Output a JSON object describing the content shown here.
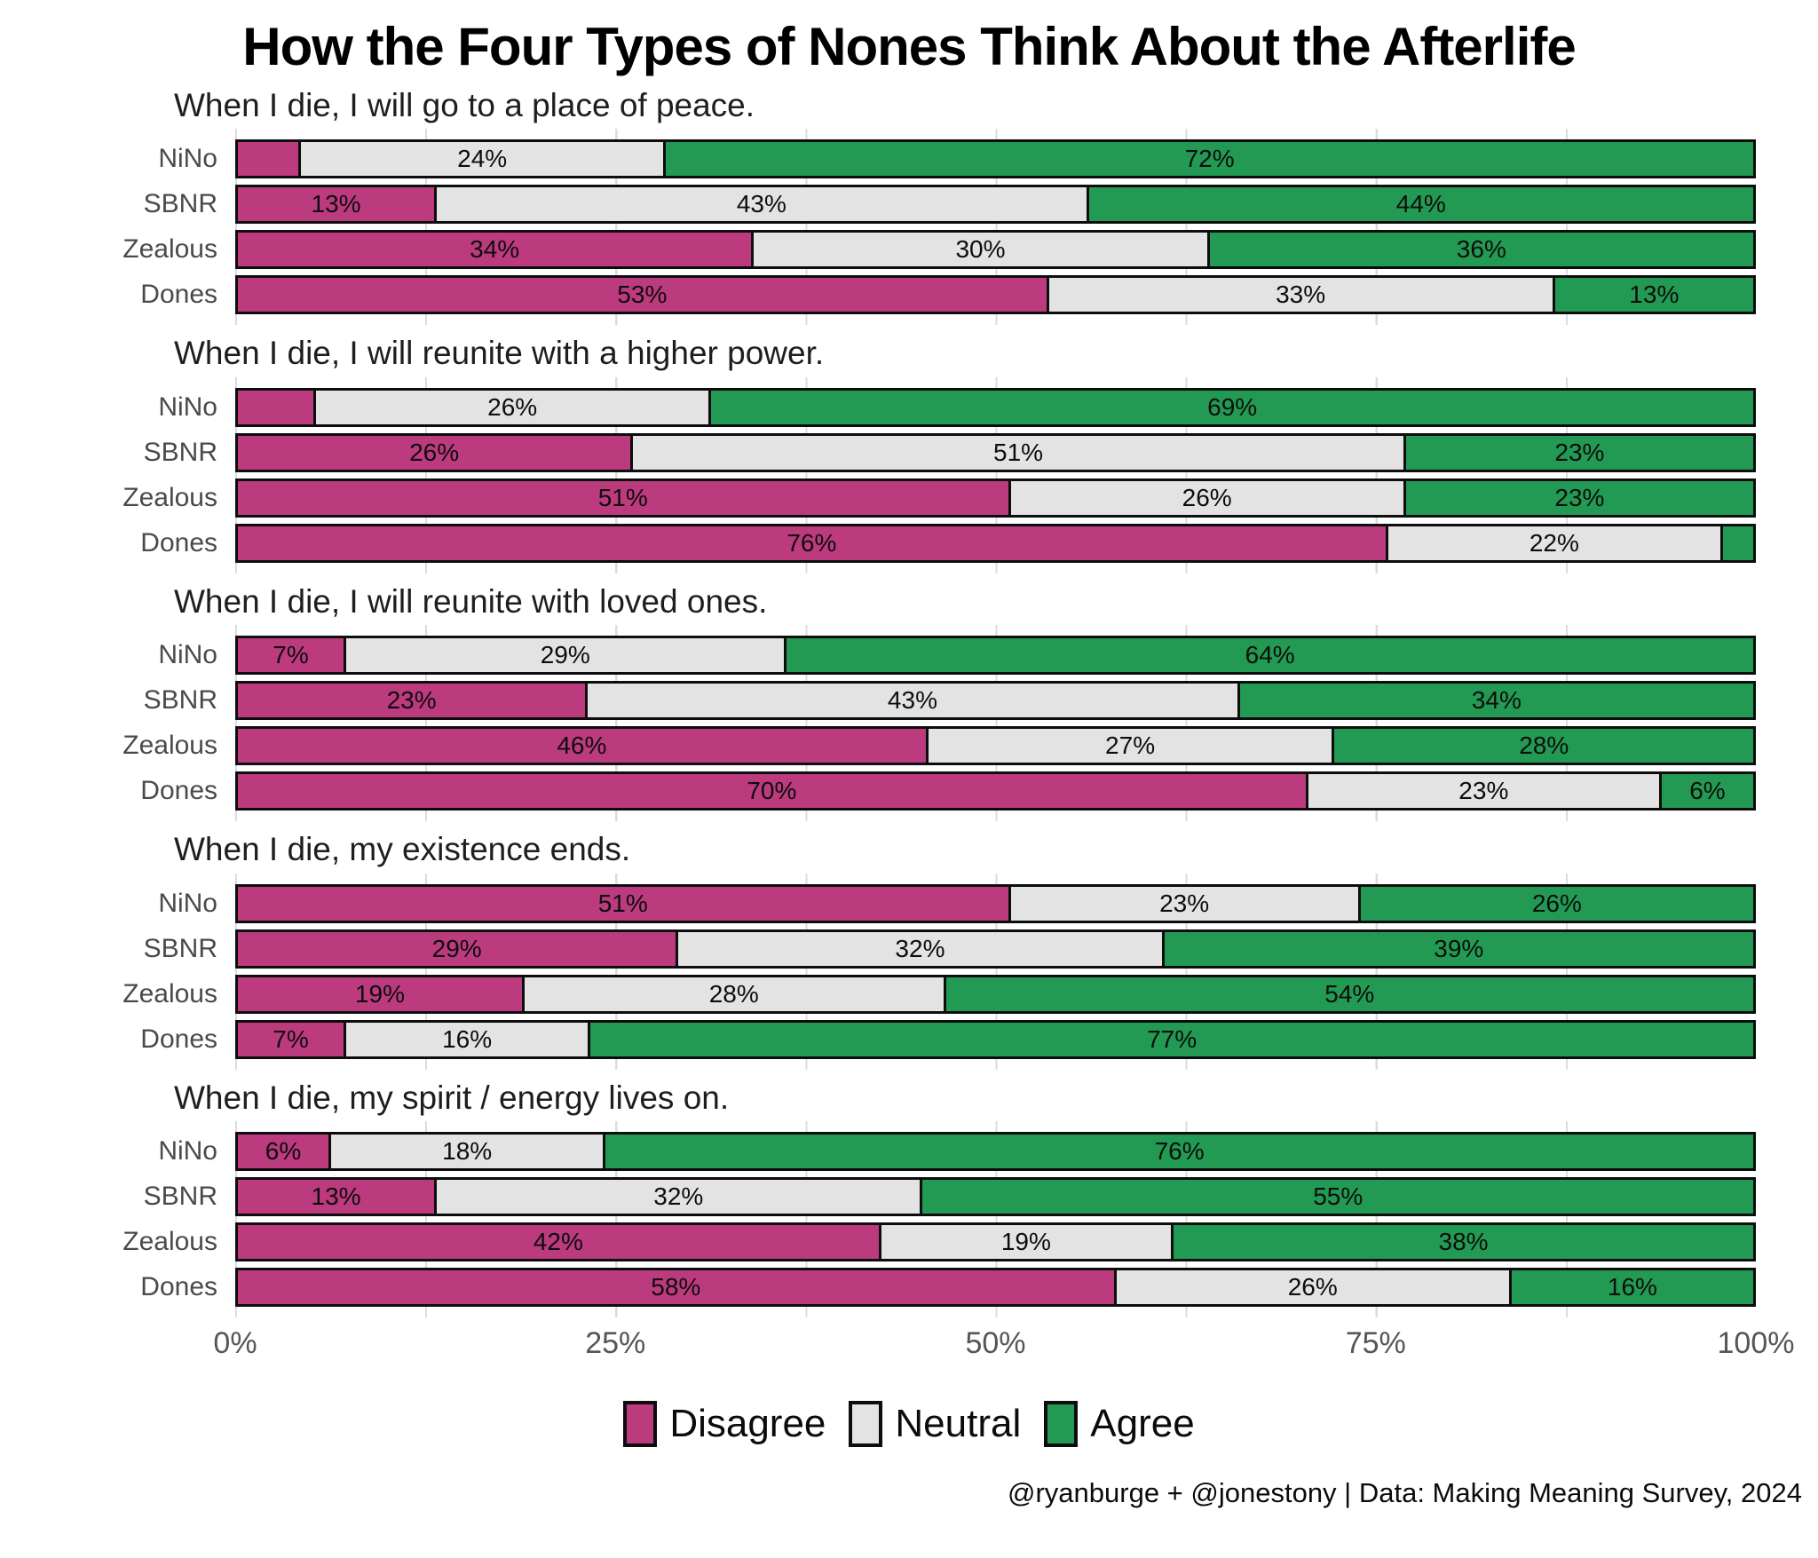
{
  "title": "How the Four Types of Nones Think About the Afterlife",
  "footer": "@ryanburge + @jonestony | Data: Making Meaning Survey, 2024",
  "colors": {
    "disagree": "#bc3a7e",
    "neutral": "#e3e3e3",
    "agree": "#229a53",
    "border": "#0d0d0d",
    "grid": "#dcdcdc",
    "row_label": "#4a4a4a",
    "axis_label": "#565656"
  },
  "legend": [
    {
      "label": "Disagree",
      "color": "#bc3a7e"
    },
    {
      "label": "Neutral",
      "color": "#e3e3e3"
    },
    {
      "label": "Agree",
      "color": "#229a53"
    }
  ],
  "axis": {
    "ticks": [
      "0%",
      "25%",
      "50%",
      "75%",
      "100%"
    ],
    "positions": [
      0,
      25,
      50,
      75,
      100
    ]
  },
  "chart_data": {
    "type": "bar",
    "stacked": true,
    "orientation": "horizontal",
    "xlim": [
      0,
      100
    ],
    "grid": "minor vertical every 12.5%",
    "legend_position": "bottom center",
    "series_names": [
      "Disagree",
      "Neutral",
      "Agree"
    ],
    "groups": [
      "NiNo",
      "SBNR",
      "Zealous",
      "Dones"
    ],
    "panels": [
      {
        "question": "When I die, I will go to a place of peace.",
        "rows": [
          {
            "group": "NiNo",
            "values": [
              4,
              24,
              72
            ],
            "labels": [
              "",
              "24%",
              "72%"
            ]
          },
          {
            "group": "SBNR",
            "values": [
              13,
              43,
              44
            ],
            "labels": [
              "13%",
              "43%",
              "44%"
            ]
          },
          {
            "group": "Zealous",
            "values": [
              34,
              30,
              36
            ],
            "labels": [
              "34%",
              "30%",
              "36%"
            ]
          },
          {
            "group": "Dones",
            "values": [
              53,
              33,
              13
            ],
            "labels": [
              "53%",
              "33%",
              "13%"
            ]
          }
        ]
      },
      {
        "question": "When I die, I will reunite with a higher power.",
        "rows": [
          {
            "group": "NiNo",
            "values": [
              5,
              26,
              69
            ],
            "labels": [
              "",
              "26%",
              "69%"
            ]
          },
          {
            "group": "SBNR",
            "values": [
              26,
              51,
              23
            ],
            "labels": [
              "26%",
              "51%",
              "23%"
            ]
          },
          {
            "group": "Zealous",
            "values": [
              51,
              26,
              23
            ],
            "labels": [
              "51%",
              "26%",
              "23%"
            ]
          },
          {
            "group": "Dones",
            "values": [
              76,
              22,
              2
            ],
            "labels": [
              "76%",
              "22%",
              ""
            ]
          }
        ]
      },
      {
        "question": "When I die, I will reunite with loved ones.",
        "rows": [
          {
            "group": "NiNo",
            "values": [
              7,
              29,
              64
            ],
            "labels": [
              "7%",
              "29%",
              "64%"
            ]
          },
          {
            "group": "SBNR",
            "values": [
              23,
              43,
              34
            ],
            "labels": [
              "23%",
              "43%",
              "34%"
            ]
          },
          {
            "group": "Zealous",
            "values": [
              46,
              27,
              28
            ],
            "labels": [
              "46%",
              "27%",
              "28%"
            ]
          },
          {
            "group": "Dones",
            "values": [
              70,
              23,
              6
            ],
            "labels": [
              "70%",
              "23%",
              "6%"
            ]
          }
        ]
      },
      {
        "question": "When I die, my existence ends.",
        "rows": [
          {
            "group": "NiNo",
            "values": [
              51,
              23,
              26
            ],
            "labels": [
              "51%",
              "23%",
              "26%"
            ]
          },
          {
            "group": "SBNR",
            "values": [
              29,
              32,
              39
            ],
            "labels": [
              "29%",
              "32%",
              "39%"
            ]
          },
          {
            "group": "Zealous",
            "values": [
              19,
              28,
              54
            ],
            "labels": [
              "19%",
              "28%",
              "54%"
            ]
          },
          {
            "group": "Dones",
            "values": [
              7,
              16,
              77
            ],
            "labels": [
              "7%",
              "16%",
              "77%"
            ]
          }
        ]
      },
      {
        "question": "When I die, my spirit / energy lives on.",
        "rows": [
          {
            "group": "NiNo",
            "values": [
              6,
              18,
              76
            ],
            "labels": [
              "6%",
              "18%",
              "76%"
            ]
          },
          {
            "group": "SBNR",
            "values": [
              13,
              32,
              55
            ],
            "labels": [
              "13%",
              "32%",
              "55%"
            ]
          },
          {
            "group": "Zealous",
            "values": [
              42,
              19,
              38
            ],
            "labels": [
              "42%",
              "19%",
              "38%"
            ]
          },
          {
            "group": "Dones",
            "values": [
              58,
              26,
              16
            ],
            "labels": [
              "58%",
              "26%",
              "16%"
            ]
          }
        ]
      }
    ]
  }
}
